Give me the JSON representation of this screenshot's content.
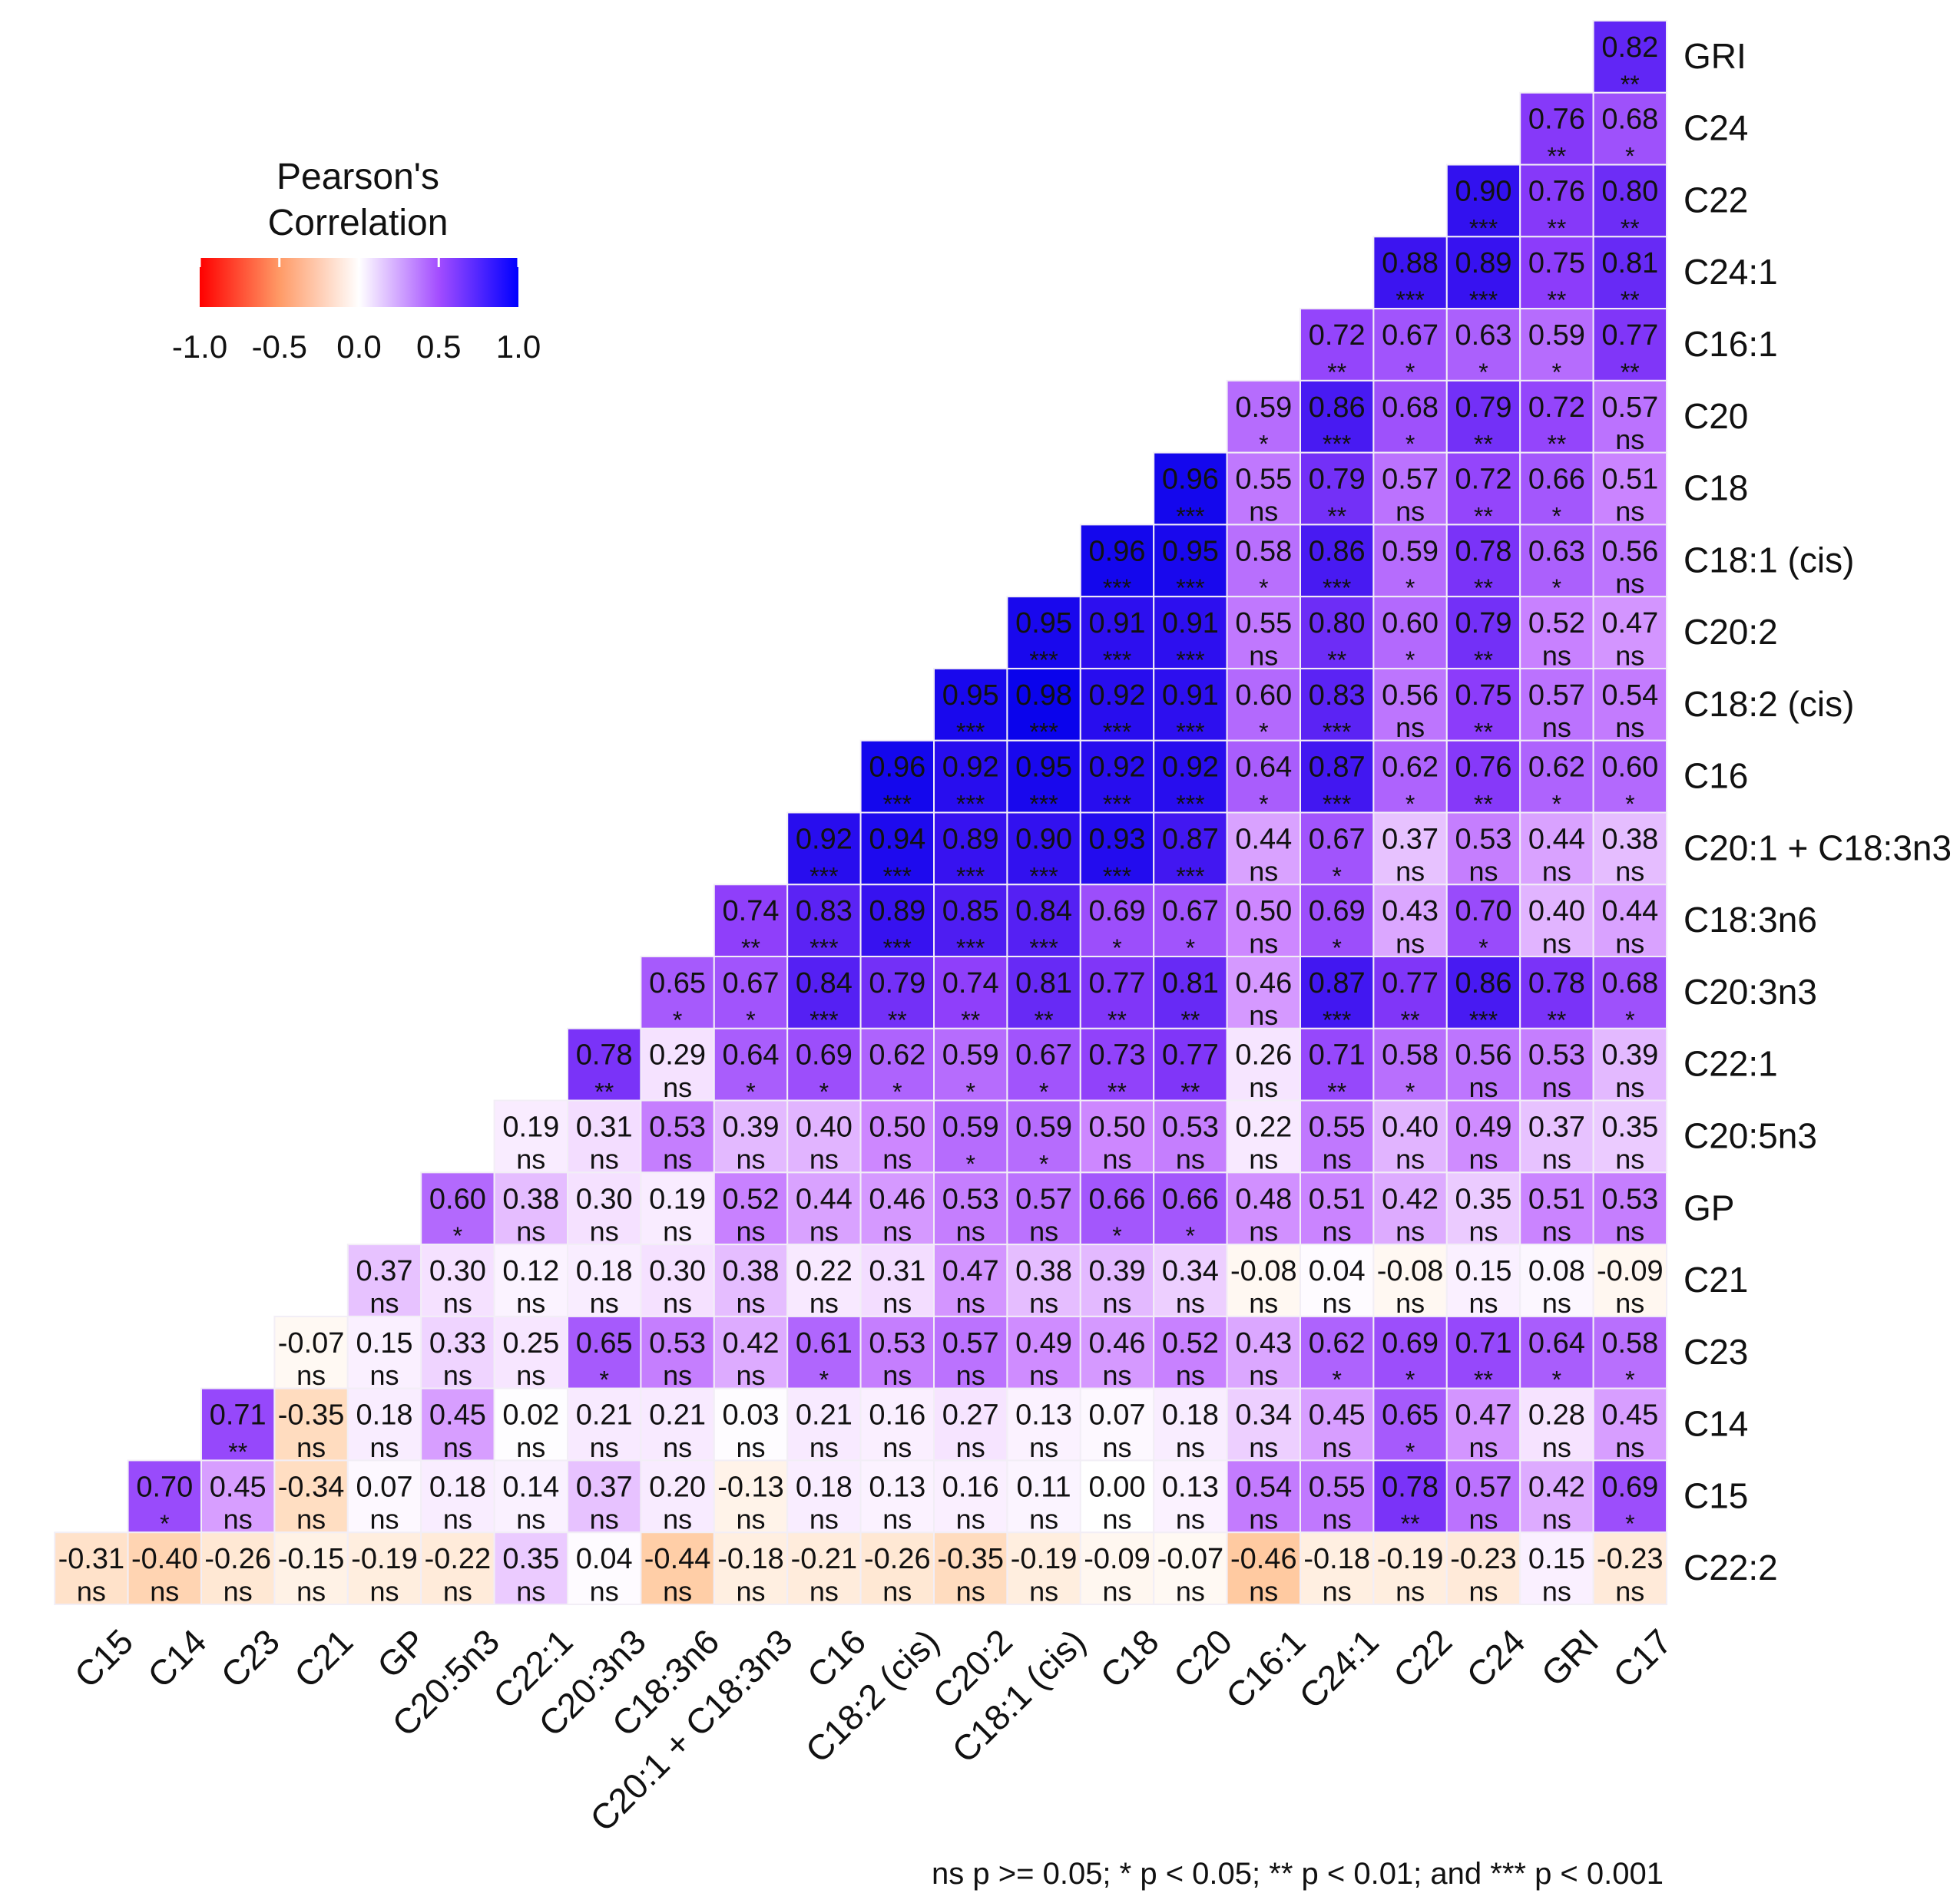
{
  "chart_data": {
    "type": "heatmap",
    "title": "",
    "legend": {
      "title_line1": "Pearson's",
      "title_line2": "Correlation",
      "ticks": [
        "-1.0",
        "-0.5",
        "0.0",
        "0.5",
        "1.0"
      ],
      "range": [
        -1.0,
        1.0
      ],
      "color_low": "#ff0000",
      "color_mid": "#ffffff",
      "color_high": "#0000ff",
      "placement": "top-left"
    },
    "row_labels": [
      "GRI",
      "C24",
      "C22",
      "C24:1",
      "C16:1",
      "C20",
      "C18",
      "C18:1 (cis)",
      "C20:2",
      "C18:2 (cis)",
      "C16",
      "C20:1 + C18:3n3",
      "C18:3n6",
      "C20:3n3",
      "C22:1",
      "C20:5n3",
      "GP",
      "C21",
      "C23",
      "C14",
      "C15",
      "C22:2"
    ],
    "column_labels": [
      "C15",
      "C14",
      "C23",
      "C21",
      "GP",
      "C20:5n3",
      "C22:1",
      "C20:3n3",
      "C18:3n6",
      "C20:1 + C18:3n3",
      "C16",
      "C18:2 (cis)",
      "C20:2",
      "C18:1 (cis)",
      "C18",
      "C20",
      "C16:1",
      "C24:1",
      "C22",
      "C24",
      "GRI",
      "C17"
    ],
    "cells": [
      {
        "row": 0,
        "values": [
          "0.82"
        ],
        "signif": [
          "**"
        ]
      },
      {
        "row": 1,
        "values": [
          "0.76",
          "0.68"
        ],
        "signif": [
          "**",
          "*"
        ]
      },
      {
        "row": 2,
        "values": [
          "0.90",
          "0.76",
          "0.80"
        ],
        "signif": [
          "***",
          "**",
          "**"
        ]
      },
      {
        "row": 3,
        "values": [
          "0.88",
          "0.89",
          "0.75",
          "0.81"
        ],
        "signif": [
          "***",
          "***",
          "**",
          "**"
        ]
      },
      {
        "row": 4,
        "values": [
          "0.72",
          "0.67",
          "0.63",
          "0.59",
          "0.77"
        ],
        "signif": [
          "**",
          "*",
          "*",
          "*",
          "**"
        ]
      },
      {
        "row": 5,
        "values": [
          "0.59",
          "0.86",
          "0.68",
          "0.79",
          "0.72",
          "0.57"
        ],
        "signif": [
          "*",
          "***",
          "*",
          "**",
          "**",
          "ns"
        ]
      },
      {
        "row": 6,
        "values": [
          "0.96",
          "0.55",
          "0.79",
          "0.57",
          "0.72",
          "0.66",
          "0.51"
        ],
        "signif": [
          "***",
          "ns",
          "**",
          "ns",
          "**",
          "*",
          "ns"
        ]
      },
      {
        "row": 7,
        "values": [
          "0.96",
          "0.95",
          "0.58",
          "0.86",
          "0.59",
          "0.78",
          "0.63",
          "0.56"
        ],
        "signif": [
          "***",
          "***",
          "*",
          "***",
          "*",
          "**",
          "*",
          "ns"
        ]
      },
      {
        "row": 8,
        "values": [
          "0.95",
          "0.91",
          "0.91",
          "0.55",
          "0.80",
          "0.60",
          "0.79",
          "0.52",
          "0.47"
        ],
        "signif": [
          "***",
          "***",
          "***",
          "ns",
          "**",
          "*",
          "**",
          "ns",
          "ns"
        ]
      },
      {
        "row": 9,
        "values": [
          "0.95",
          "0.98",
          "0.92",
          "0.91",
          "0.60",
          "0.83",
          "0.56",
          "0.75",
          "0.57",
          "0.54"
        ],
        "signif": [
          "***",
          "***",
          "***",
          "***",
          "*",
          "***",
          "ns",
          "**",
          "ns",
          "ns"
        ]
      },
      {
        "row": 10,
        "values": [
          "0.96",
          "0.92",
          "0.95",
          "0.92",
          "0.92",
          "0.64",
          "0.87",
          "0.62",
          "0.76",
          "0.62",
          "0.60"
        ],
        "signif": [
          "***",
          "***",
          "***",
          "***",
          "***",
          "*",
          "***",
          "*",
          "**",
          "*",
          "*"
        ]
      },
      {
        "row": 11,
        "values": [
          "0.92",
          "0.94",
          "0.89",
          "0.90",
          "0.93",
          "0.87",
          "0.44",
          "0.67",
          "0.37",
          "0.53",
          "0.44",
          "0.38"
        ],
        "signif": [
          "***",
          "***",
          "***",
          "***",
          "***",
          "***",
          "ns",
          "*",
          "ns",
          "ns",
          "ns",
          "ns"
        ]
      },
      {
        "row": 12,
        "values": [
          "0.74",
          "0.83",
          "0.89",
          "0.85",
          "0.84",
          "0.69",
          "0.67",
          "0.50",
          "0.69",
          "0.43",
          "0.70",
          "0.40",
          "0.44"
        ],
        "signif": [
          "**",
          "***",
          "***",
          "***",
          "***",
          "*",
          "*",
          "ns",
          "*",
          "ns",
          "*",
          "ns",
          "ns"
        ]
      },
      {
        "row": 13,
        "values": [
          "0.65",
          "0.67",
          "0.84",
          "0.79",
          "0.74",
          "0.81",
          "0.77",
          "0.81",
          "0.46",
          "0.87",
          "0.77",
          "0.86",
          "0.78",
          "0.68"
        ],
        "signif": [
          "*",
          "*",
          "***",
          "**",
          "**",
          "**",
          "**",
          "**",
          "ns",
          "***",
          "**",
          "***",
          "**",
          "*"
        ]
      },
      {
        "row": 14,
        "values": [
          "0.78",
          "0.29",
          "0.64",
          "0.69",
          "0.62",
          "0.59",
          "0.67",
          "0.73",
          "0.77",
          "0.26",
          "0.71",
          "0.58",
          "0.56",
          "0.53",
          "0.39"
        ],
        "signif": [
          "**",
          "ns",
          "*",
          "*",
          "*",
          "*",
          "*",
          "**",
          "**",
          "ns",
          "**",
          "*",
          "ns",
          "ns",
          "ns"
        ]
      },
      {
        "row": 15,
        "values": [
          "0.19",
          "0.31",
          "0.53",
          "0.39",
          "0.40",
          "0.50",
          "0.59",
          "0.59",
          "0.50",
          "0.53",
          "0.22",
          "0.55",
          "0.40",
          "0.49",
          "0.37",
          "0.35"
        ],
        "signif": [
          "ns",
          "ns",
          "ns",
          "ns",
          "ns",
          "ns",
          "*",
          "*",
          "ns",
          "ns",
          "ns",
          "ns",
          "ns",
          "ns",
          "ns",
          "ns"
        ]
      },
      {
        "row": 16,
        "values": [
          "0.60",
          "0.38",
          "0.30",
          "0.19",
          "0.52",
          "0.44",
          "0.46",
          "0.53",
          "0.57",
          "0.66",
          "0.66",
          "0.48",
          "0.51",
          "0.42",
          "0.35",
          "0.51",
          "0.53"
        ],
        "signif": [
          "*",
          "ns",
          "ns",
          "ns",
          "ns",
          "ns",
          "ns",
          "ns",
          "ns",
          "*",
          "*",
          "ns",
          "ns",
          "ns",
          "ns",
          "ns",
          "ns"
        ]
      },
      {
        "row": 17,
        "values": [
          "0.37",
          "0.30",
          "0.12",
          "0.18",
          "0.30",
          "0.38",
          "0.22",
          "0.31",
          "0.47",
          "0.38",
          "0.39",
          "0.34",
          "-0.08",
          "0.04",
          "-0.08",
          "0.15",
          "0.08",
          "-0.09"
        ],
        "signif": [
          "ns",
          "ns",
          "ns",
          "ns",
          "ns",
          "ns",
          "ns",
          "ns",
          "ns",
          "ns",
          "ns",
          "ns",
          "ns",
          "ns",
          "ns",
          "ns",
          "ns",
          "ns"
        ]
      },
      {
        "row": 18,
        "values": [
          "-0.07",
          "0.15",
          "0.33",
          "0.25",
          "0.65",
          "0.53",
          "0.42",
          "0.61",
          "0.53",
          "0.57",
          "0.49",
          "0.46",
          "0.52",
          "0.43",
          "0.62",
          "0.69",
          "0.71",
          "0.64",
          "0.58"
        ],
        "signif": [
          "ns",
          "ns",
          "ns",
          "ns",
          "*",
          "ns",
          "ns",
          "*",
          "ns",
          "ns",
          "ns",
          "ns",
          "ns",
          "ns",
          "*",
          "*",
          "**",
          "*",
          "*"
        ]
      },
      {
        "row": 19,
        "values": [
          "0.71",
          "-0.35",
          "0.18",
          "0.45",
          "0.02",
          "0.21",
          "0.21",
          "0.03",
          "0.21",
          "0.16",
          "0.27",
          "0.13",
          "0.07",
          "0.18",
          "0.34",
          "0.45",
          "0.65",
          "0.47",
          "0.28",
          "0.45"
        ],
        "signif": [
          "**",
          "ns",
          "ns",
          "ns",
          "ns",
          "ns",
          "ns",
          "ns",
          "ns",
          "ns",
          "ns",
          "ns",
          "ns",
          "ns",
          "ns",
          "ns",
          "*",
          "ns",
          "ns",
          "ns"
        ]
      },
      {
        "row": 20,
        "values": [
          "0.70",
          "0.45",
          "-0.34",
          "0.07",
          "0.18",
          "0.14",
          "0.37",
          "0.20",
          "-0.13",
          "0.18",
          "0.13",
          "0.16",
          "0.11",
          "0.00",
          "0.13",
          "0.54",
          "0.55",
          "0.78",
          "0.57",
          "0.42",
          "0.69"
        ],
        "signif": [
          "*",
          "ns",
          "ns",
          "ns",
          "ns",
          "ns",
          "ns",
          "ns",
          "ns",
          "ns",
          "ns",
          "ns",
          "ns",
          "ns",
          "ns",
          "ns",
          "ns",
          "**",
          "ns",
          "ns",
          "*"
        ]
      },
      {
        "row": 21,
        "values": [
          "-0.31",
          "-0.40",
          "-0.26",
          "-0.15",
          "-0.19",
          "-0.22",
          "0.35",
          "0.04",
          "-0.44",
          "-0.18",
          "-0.21",
          "-0.26",
          "-0.35",
          "-0.19",
          "-0.09",
          "-0.07",
          "-0.46",
          "-0.18",
          "-0.19",
          "-0.23",
          "0.15",
          "-0.23"
        ],
        "signif": [
          "ns",
          "ns",
          "ns",
          "ns",
          "ns",
          "ns",
          "ns",
          "ns",
          "ns",
          "ns",
          "ns",
          "ns",
          "ns",
          "ns",
          "ns",
          "ns",
          "ns",
          "ns",
          "ns",
          "ns",
          "ns",
          "ns"
        ]
      }
    ],
    "footnote": "ns p >= 0.05; * p < 0.05; ** p < 0.01; and *** p < 0.001"
  }
}
